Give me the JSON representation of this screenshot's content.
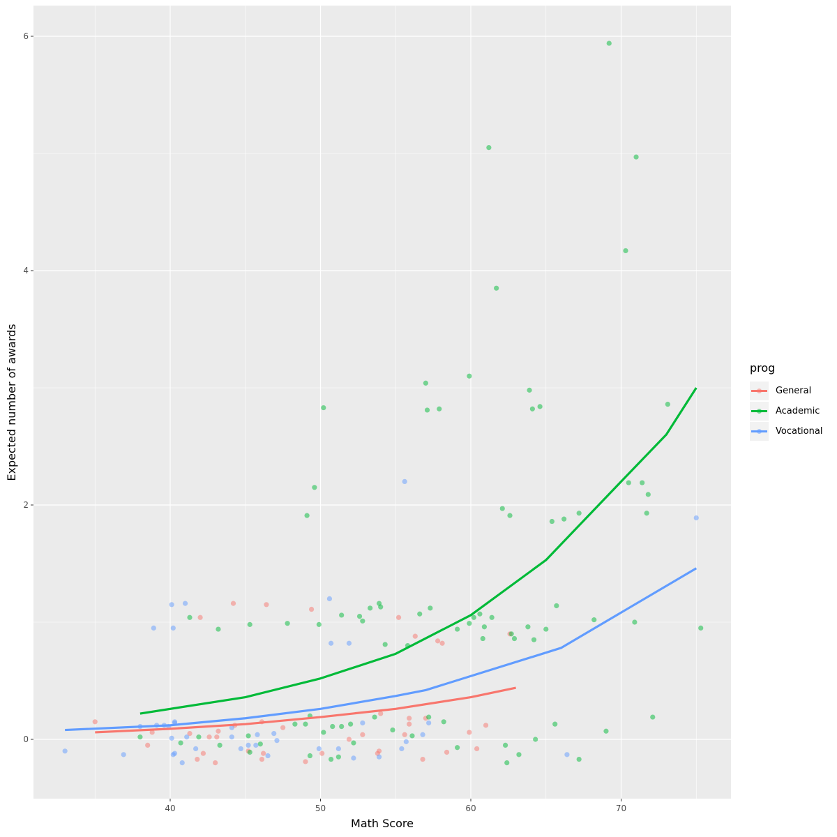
{
  "chart_data": {
    "type": "scatter",
    "title": "",
    "xlabel": "Math Score",
    "ylabel": "Expected number of awards",
    "xlim": [
      31.5,
      77.3
    ],
    "ylim": [
      -0.5,
      6.25
    ],
    "x_ticks": [
      40,
      50,
      60,
      70
    ],
    "y_ticks": [
      0,
      2,
      4,
      6
    ],
    "grid": true,
    "legend": {
      "title": "prog",
      "position": "right",
      "entries": [
        "General",
        "Academic",
        "Vocational"
      ]
    },
    "colors": {
      "General": "#F8766D",
      "Academic": "#00BA38",
      "Vocational": "#619CFF"
    },
    "series": [
      {
        "name": "General",
        "line": {
          "x": [
            35,
            40,
            45,
            50,
            55,
            60,
            63
          ],
          "y": [
            0.06,
            0.09,
            0.13,
            0.19,
            0.26,
            0.36,
            0.44
          ]
        },
        "points": [
          [
            35,
            0.15
          ],
          [
            38.5,
            -0.05
          ],
          [
            38.8,
            0.06
          ],
          [
            41.3,
            0.05
          ],
          [
            41.8,
            -0.17
          ],
          [
            42.0,
            1.04
          ],
          [
            42.2,
            -0.12
          ],
          [
            42.6,
            0.02
          ],
          [
            43.1,
            0.02
          ],
          [
            43.2,
            0.07
          ],
          [
            43.0,
            -0.2
          ],
          [
            44.2,
            1.16
          ],
          [
            44.3,
            0.12
          ],
          [
            45.2,
            -0.1
          ],
          [
            46.1,
            -0.17
          ],
          [
            46.2,
            -0.12
          ],
          [
            46.1,
            0.15
          ],
          [
            46.4,
            1.15
          ],
          [
            47.5,
            0.1
          ],
          [
            49.0,
            -0.19
          ],
          [
            49.4,
            1.11
          ],
          [
            50.1,
            -0.12
          ],
          [
            51.9,
            0.0
          ],
          [
            52.8,
            0.04
          ],
          [
            53.8,
            -0.12
          ],
          [
            53.9,
            -0.1
          ],
          [
            54.0,
            0.22
          ],
          [
            55.2,
            1.04
          ],
          [
            55.9,
            0.18
          ],
          [
            55.9,
            0.13
          ],
          [
            56.3,
            0.88
          ],
          [
            56.8,
            -0.17
          ],
          [
            57.0,
            0.18
          ],
          [
            57.8,
            0.84
          ],
          [
            58.1,
            0.82
          ],
          [
            58.4,
            -0.11
          ],
          [
            59.9,
            0.06
          ],
          [
            60.4,
            -0.08
          ],
          [
            61.0,
            0.12
          ],
          [
            62.6,
            0.9
          ],
          [
            55.6,
            0.04
          ]
        ]
      },
      {
        "name": "Academic",
        "line": {
          "x": [
            38,
            45,
            50,
            55,
            60,
            65,
            70,
            73,
            75
          ],
          "y": [
            0.22,
            0.36,
            0.52,
            0.73,
            1.06,
            1.53,
            2.2,
            2.6,
            3.0
          ]
        },
        "points": [
          [
            38.0,
            0.02
          ],
          [
            40.7,
            -0.03
          ],
          [
            41.3,
            1.04
          ],
          [
            41.9,
            0.02
          ],
          [
            43.2,
            0.94
          ],
          [
            43.3,
            -0.05
          ],
          [
            45.2,
            0.03
          ],
          [
            45.3,
            0.98
          ],
          [
            45.3,
            -0.11
          ],
          [
            46.0,
            -0.04
          ],
          [
            47.8,
            0.99
          ],
          [
            48.3,
            0.13
          ],
          [
            49.0,
            0.13
          ],
          [
            49.3,
            0.2
          ],
          [
            49.3,
            -0.14
          ],
          [
            49.1,
            1.91
          ],
          [
            49.6,
            2.15
          ],
          [
            49.9,
            0.98
          ],
          [
            50.2,
            0.06
          ],
          [
            50.2,
            2.83
          ],
          [
            50.7,
            -0.17
          ],
          [
            50.8,
            0.11
          ],
          [
            51.2,
            -0.15
          ],
          [
            51.4,
            1.06
          ],
          [
            51.4,
            0.11
          ],
          [
            52.0,
            0.13
          ],
          [
            52.2,
            -0.03
          ],
          [
            52.6,
            1.05
          ],
          [
            52.8,
            1.01
          ],
          [
            53.3,
            1.12
          ],
          [
            53.6,
            0.19
          ],
          [
            53.9,
            1.16
          ],
          [
            54.0,
            1.13
          ],
          [
            54.3,
            0.81
          ],
          [
            54.8,
            0.08
          ],
          [
            55.8,
            0.8
          ],
          [
            56.1,
            0.03
          ],
          [
            56.6,
            1.07
          ],
          [
            57.0,
            3.04
          ],
          [
            57.1,
            2.81
          ],
          [
            57.2,
            0.19
          ],
          [
            57.3,
            1.12
          ],
          [
            57.9,
            2.82
          ],
          [
            58.2,
            0.15
          ],
          [
            59.1,
            0.94
          ],
          [
            59.1,
            -0.07
          ],
          [
            59.9,
            3.1
          ],
          [
            59.9,
            0.99
          ],
          [
            60.2,
            1.04
          ],
          [
            60.6,
            1.07
          ],
          [
            60.9,
            0.96
          ],
          [
            60.8,
            0.86
          ],
          [
            61.2,
            5.05
          ],
          [
            61.4,
            1.04
          ],
          [
            61.7,
            3.85
          ],
          [
            62.1,
            1.97
          ],
          [
            62.6,
            1.91
          ],
          [
            62.7,
            0.9
          ],
          [
            62.9,
            0.86
          ],
          [
            62.3,
            -0.05
          ],
          [
            62.4,
            -0.2
          ],
          [
            63.8,
            0.96
          ],
          [
            63.9,
            2.98
          ],
          [
            64.1,
            2.82
          ],
          [
            64.2,
            0.85
          ],
          [
            64.6,
            2.84
          ],
          [
            65.0,
            0.94
          ],
          [
            65.4,
            1.86
          ],
          [
            65.6,
            0.13
          ],
          [
            65.7,
            1.14
          ],
          [
            66.2,
            1.88
          ],
          [
            67.2,
            1.93
          ],
          [
            67.2,
            -0.17
          ],
          [
            68.2,
            1.02
          ],
          [
            69.0,
            0.07
          ],
          [
            69.2,
            5.94
          ],
          [
            70.3,
            4.17
          ],
          [
            70.5,
            2.19
          ],
          [
            70.9,
            1.0
          ],
          [
            71.0,
            4.97
          ],
          [
            71.4,
            2.19
          ],
          [
            71.7,
            1.93
          ],
          [
            71.8,
            2.09
          ],
          [
            72.1,
            0.19
          ],
          [
            73.1,
            2.86
          ],
          [
            75.3,
            0.95
          ],
          [
            63.2,
            -0.13
          ],
          [
            64.3,
            0.0
          ]
        ]
      },
      {
        "name": "Vocational",
        "line": {
          "x": [
            33,
            40,
            45,
            50,
            55,
            57,
            66,
            75
          ],
          "y": [
            0.08,
            0.12,
            0.18,
            0.26,
            0.37,
            0.42,
            0.78,
            1.46
          ]
        },
        "points": [
          [
            33.0,
            -0.1
          ],
          [
            36.9,
            -0.13
          ],
          [
            38.0,
            0.11
          ],
          [
            38.9,
            0.95
          ],
          [
            39.1,
            0.12
          ],
          [
            39.6,
            0.12
          ],
          [
            39.9,
            0.11
          ],
          [
            40.1,
            0.01
          ],
          [
            40.2,
            -0.13
          ],
          [
            40.1,
            1.15
          ],
          [
            40.2,
            0.95
          ],
          [
            40.3,
            0.14
          ],
          [
            40.3,
            0.15
          ],
          [
            40.3,
            -0.12
          ],
          [
            40.8,
            -0.2
          ],
          [
            41.0,
            1.16
          ],
          [
            41.1,
            0.02
          ],
          [
            41.7,
            -0.08
          ],
          [
            44.1,
            0.1
          ],
          [
            44.1,
            0.02
          ],
          [
            44.7,
            -0.08
          ],
          [
            45.2,
            -0.05
          ],
          [
            45.7,
            -0.05
          ],
          [
            45.8,
            0.04
          ],
          [
            46.5,
            -0.14
          ],
          [
            46.9,
            0.05
          ],
          [
            47.1,
            -0.01
          ],
          [
            49.9,
            -0.08
          ],
          [
            50.6,
            1.2
          ],
          [
            50.7,
            0.82
          ],
          [
            51.2,
            -0.08
          ],
          [
            51.9,
            0.82
          ],
          [
            52.2,
            -0.16
          ],
          [
            52.8,
            0.14
          ],
          [
            53.9,
            -0.15
          ],
          [
            55.4,
            -0.08
          ],
          [
            55.6,
            2.2
          ],
          [
            55.7,
            -0.02
          ],
          [
            56.8,
            0.04
          ],
          [
            57.2,
            0.14
          ],
          [
            66.4,
            -0.13
          ],
          [
            75.0,
            1.89
          ]
        ]
      }
    ]
  }
}
